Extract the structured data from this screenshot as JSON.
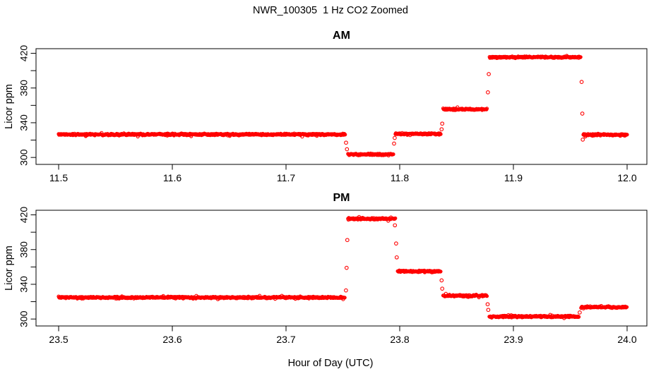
{
  "figure": {
    "title": "NWR_100305  1 Hz CO2 Zoomed",
    "xlabel": "Hour of Day (UTC)",
    "point_color": "#ff0000",
    "axis_color": "#000000",
    "background": "#ffffff"
  },
  "chart_data": [
    {
      "type": "scatter",
      "panel": "AM",
      "title": "AM",
      "ylabel": "Licor ppm",
      "marker": "open-circle",
      "sampling": "1 Hz",
      "xlim": [
        11.4801,
        12.0174
      ],
      "ylim": [
        292.0,
        425.3
      ],
      "x_ticks": [
        11.5,
        11.6,
        11.7,
        11.8,
        11.9,
        12.0
      ],
      "x_tick_labels": [
        "11.5",
        "11.6",
        "11.7",
        "11.8",
        "11.9",
        "12.0"
      ],
      "y_ticks": [
        300,
        320,
        340,
        360,
        380,
        400,
        420
      ],
      "y_tick_labels": [
        "300",
        "",
        "340",
        "",
        "380",
        "",
        "420"
      ],
      "step_segments": [
        {
          "x0": 11.5,
          "x1": 11.752,
          "v": 326.5
        },
        {
          "x0": 11.7545,
          "x1": 11.7945,
          "v": 303.5
        },
        {
          "x0": 11.7962,
          "x1": 11.8362,
          "v": 327.2
        },
        {
          "x0": 11.8382,
          "x1": 11.877,
          "v": 355.5
        },
        {
          "x0": 11.879,
          "x1": 11.9593,
          "v": 415.5
        },
        {
          "x0": 11.9615,
          "x1": 12.0,
          "v": 326.2
        }
      ],
      "transition_points": [
        [
          11.7528,
          317.0
        ],
        [
          11.7536,
          309.5
        ],
        [
          11.795,
          316.0
        ],
        [
          11.7956,
          322.5
        ],
        [
          11.8368,
          332.5
        ],
        [
          11.8374,
          339.0
        ],
        [
          11.8776,
          375.0
        ],
        [
          11.8783,
          396.0
        ],
        [
          11.96,
          387.0
        ],
        [
          11.9606,
          350.5
        ],
        [
          11.961,
          320.5
        ]
      ]
    },
    {
      "type": "scatter",
      "panel": "PM",
      "title": "PM",
      "ylabel": "Licor ppm",
      "marker": "open-circle",
      "sampling": "1 Hz",
      "xlim": [
        23.4801,
        24.0174
      ],
      "ylim": [
        292.0,
        425.3
      ],
      "x_ticks": [
        23.5,
        23.6,
        23.7,
        23.8,
        23.9,
        24.0
      ],
      "x_tick_labels": [
        "23.5",
        "23.6",
        "23.7",
        "23.8",
        "23.9",
        "24.0"
      ],
      "y_ticks": [
        300,
        320,
        340,
        360,
        380,
        400,
        420
      ],
      "y_tick_labels": [
        "300",
        "",
        "340",
        "",
        "380",
        "",
        "420"
      ],
      "step_segments": [
        {
          "x0": 23.5,
          "x1": 23.752,
          "v": 324.8
        },
        {
          "x0": 23.7545,
          "x1": 23.7962,
          "v": 415.5
        },
        {
          "x0": 23.7982,
          "x1": 23.8362,
          "v": 355.0
        },
        {
          "x0": 23.8382,
          "x1": 23.8768,
          "v": 326.8
        },
        {
          "x0": 23.8788,
          "x1": 23.9578,
          "v": 302.8
        },
        {
          "x0": 23.9595,
          "x1": 24.0,
          "v": 313.8
        }
      ],
      "transition_points": [
        [
          23.7527,
          333.0
        ],
        [
          23.7533,
          359.0
        ],
        [
          23.7539,
          391.0
        ],
        [
          23.7958,
          408.0
        ],
        [
          23.7968,
          387.0
        ],
        [
          23.7974,
          371.0
        ],
        [
          23.8368,
          344.5
        ],
        [
          23.8374,
          335.0
        ],
        [
          23.8773,
          317.0
        ],
        [
          23.8779,
          310.5
        ],
        [
          23.9583,
          307.5
        ]
      ]
    }
  ]
}
